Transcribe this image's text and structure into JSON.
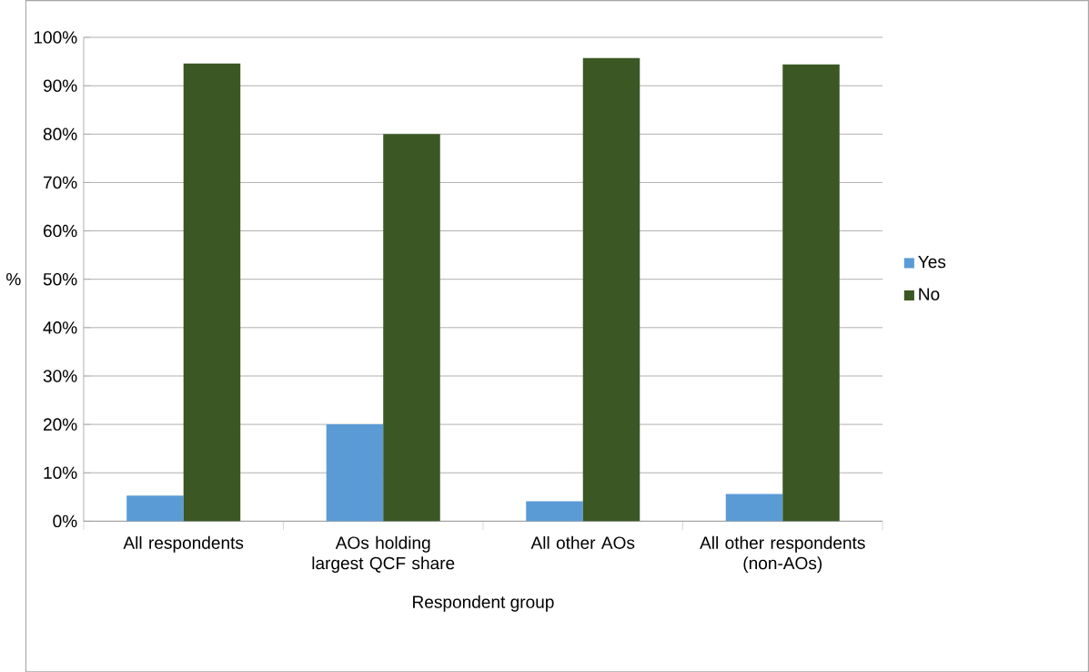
{
  "chart_data": {
    "type": "bar",
    "xlabel": "Respondent group",
    "ylabel": "%",
    "categories": [
      "All respondents",
      "AOs holding largest QCF share",
      "All other AOs",
      "All other respondents (non-AOs)"
    ],
    "series": [
      {
        "name": "Yes",
        "color": "#5b9bd5",
        "values": [
          5.3,
          20,
          4.1,
          5.6
        ]
      },
      {
        "name": "No",
        "color": "#3a5724",
        "values": [
          94.6,
          80,
          95.7,
          94.4
        ]
      }
    ],
    "ylim": [
      0,
      100
    ],
    "yticks": [
      {
        "value": 0,
        "label": "0%"
      },
      {
        "value": 10,
        "label": "10%"
      },
      {
        "value": 20,
        "label": "20%"
      },
      {
        "value": 30,
        "label": "30%"
      },
      {
        "value": 40,
        "label": "40%"
      },
      {
        "value": 50,
        "label": "50%"
      },
      {
        "value": 60,
        "label": "60%"
      },
      {
        "value": 70,
        "label": "70%"
      },
      {
        "value": 80,
        "label": "80%"
      },
      {
        "value": 90,
        "label": "90%"
      },
      {
        "value": 100,
        "label": "100%"
      }
    ],
    "grid": "y",
    "legend": "right"
  }
}
